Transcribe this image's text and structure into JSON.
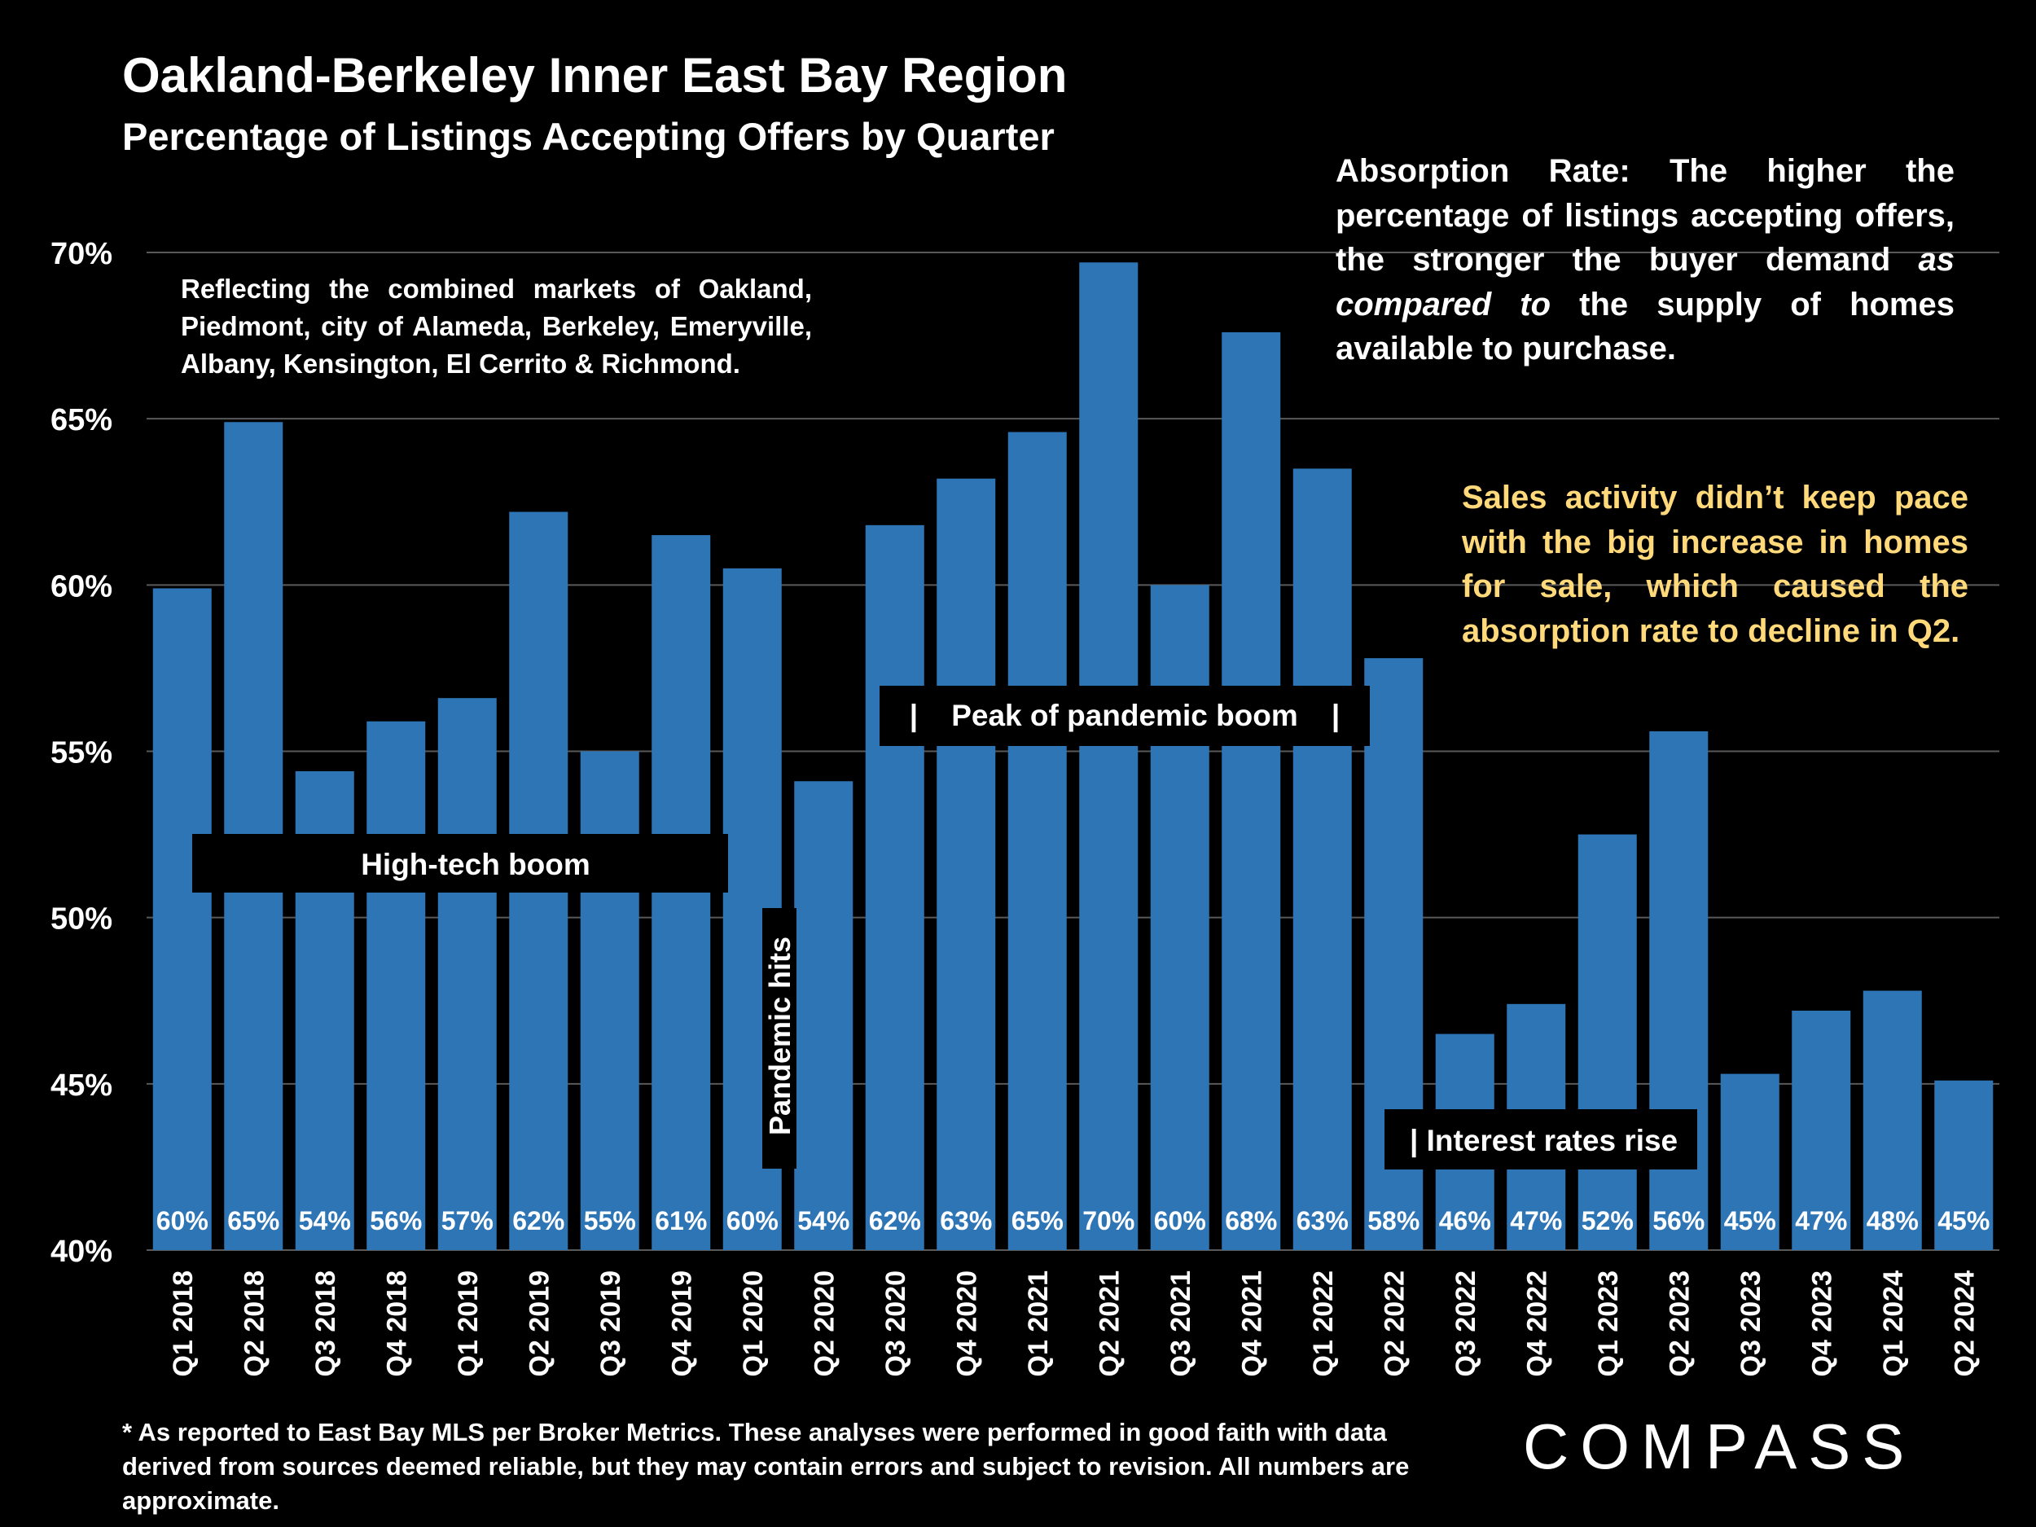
{
  "title": "Oakland-Berkeley Inner East Bay Region",
  "subtitle": "Percentage of Listings Accepting Offers by Quarter",
  "notes": {
    "markets": "Reflecting the combined markets of Oakland, Piedmont, city of Alameda, Berkeley, Emeryville, Albany, Kensington, El Cerrito & Richmond.",
    "absorption_prefix": "Absorption Rate:  The higher the percentage of listings accepting offers, the stronger the buyer demand ",
    "absorption_italic": "as compared to",
    "absorption_suffix": " the supply of homes available to purchase.",
    "sales": "Sales activity didn’t keep pace with the big increase in homes for sale, which caused the absorption rate to decline in Q2."
  },
  "footnote": "* As reported to East Bay MLS per Broker Metrics. These analyses were performed in good faith with data derived from sources deemed reliable, but they may contain errors and subject to revision. All numbers are approximate.",
  "logo_text": "COMPASS",
  "colors": {
    "background": "#000000",
    "bar": "#2e75b6",
    "text": "#ffffff",
    "highlight": "#ffd97a",
    "grid": "#595959"
  },
  "chart_data": {
    "type": "bar",
    "title": "Oakland-Berkeley Inner East Bay Region",
    "subtitle": "Percentage of Listings Accepting Offers by Quarter",
    "ylim": [
      40,
      70
    ],
    "yticks": [
      "40%",
      "45%",
      "50%",
      "55%",
      "60%",
      "65%",
      "70%"
    ],
    "grid": true,
    "categories": [
      "Q1 2018",
      "Q2 2018",
      "Q3 2018",
      "Q4 2018",
      "Q1 2019",
      "Q2 2019",
      "Q3 2019",
      "Q4 2019",
      "Q1 2020",
      "Q2 2020",
      "Q3 2020",
      "Q4 2020",
      "Q1 2021",
      "Q2 2021",
      "Q3 2021",
      "Q4 2021",
      "Q1 2022",
      "Q2 2022",
      "Q3 2022",
      "Q4 2022",
      "Q1 2023",
      "Q2 2023",
      "Q3 2023",
      "Q4 2023",
      "Q1 2024",
      "Q2 2024"
    ],
    "values": [
      59.9,
      64.9,
      54.4,
      55.9,
      56.6,
      62.2,
      55.0,
      61.5,
      60.5,
      54.1,
      61.8,
      63.2,
      64.6,
      69.7,
      60.0,
      67.6,
      63.5,
      57.8,
      46.5,
      47.4,
      52.5,
      55.6,
      45.3,
      47.2,
      47.8,
      45.1
    ],
    "data_labels": [
      "60%",
      "65%",
      "54%",
      "56%",
      "57%",
      "62%",
      "55%",
      "61%",
      "60%",
      "54%",
      "62%",
      "63%",
      "65%",
      "70%",
      "60%",
      "68%",
      "63%",
      "58%",
      "46%",
      "47%",
      "52%",
      "56%",
      "45%",
      "47%",
      "48%",
      "45%"
    ],
    "annotations": {
      "high_tech": "High-tech boom",
      "pandemic_hits": "Pandemic hits",
      "peak_pandemic": "|    Peak of pandemic boom    |",
      "interest_rates": "| Interest rates rise"
    }
  }
}
